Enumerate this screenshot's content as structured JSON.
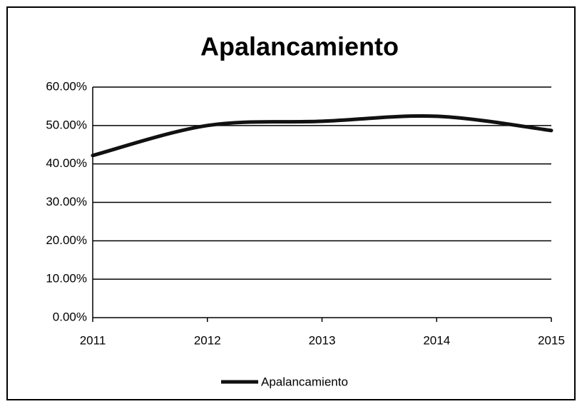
{
  "chart_data": {
    "type": "line",
    "title": "Apalancamiento",
    "categories": [
      "2011",
      "2012",
      "2013",
      "2014",
      "2015"
    ],
    "series": [
      {
        "name": "Apalancamiento",
        "color": "#111111",
        "values": [
          42.2,
          50.0,
          51.1,
          52.4,
          48.7
        ]
      }
    ],
    "ylim": [
      0,
      60
    ],
    "yticks": [
      {
        "value": 0,
        "label": "0.00%"
      },
      {
        "value": 10,
        "label": "10.00%"
      },
      {
        "value": 20,
        "label": "20.00%"
      },
      {
        "value": 30,
        "label": "30.00%"
      },
      {
        "value": 40,
        "label": "40.00%"
      },
      {
        "value": 50,
        "label": "50.00%"
      },
      {
        "value": 60,
        "label": "60.00%"
      }
    ],
    "grid": true,
    "legend": "bottom"
  }
}
